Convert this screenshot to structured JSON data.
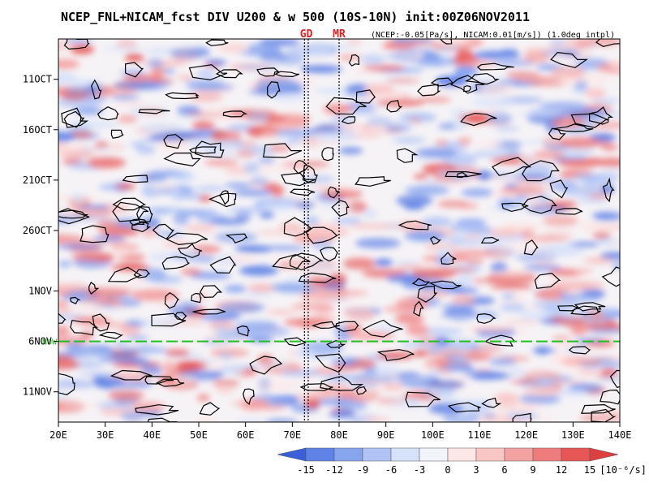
{
  "chart_data": {
    "type": "heatmap",
    "title": "NCEP_FNL+NICAM_fcst DIV U200 & w 500 (10S-10N) init:00Z06NOV2011",
    "subtitle": "(NCEP:-0.05[Pa/s], NICAM:0.01[m/s]) (1.0deg intpl)",
    "x_axis": {
      "range": [
        20,
        140
      ],
      "ticks": [
        {
          "value": 20,
          "label": "20E"
        },
        {
          "value": 30,
          "label": "30E"
        },
        {
          "value": 40,
          "label": "40E"
        },
        {
          "value": 50,
          "label": "50E"
        },
        {
          "value": 60,
          "label": "60E"
        },
        {
          "value": 70,
          "label": "70E"
        },
        {
          "value": 80,
          "label": "80E"
        },
        {
          "value": 90,
          "label": "90E"
        },
        {
          "value": 100,
          "label": "100E"
        },
        {
          "value": 110,
          "label": "110E"
        },
        {
          "value": 120,
          "label": "120E"
        },
        {
          "value": 130,
          "label": "130E"
        },
        {
          "value": 140,
          "label": "140E"
        }
      ]
    },
    "y_axis": {
      "start": "2011-10-07",
      "end": "2011-11-14",
      "ticks": [
        {
          "date": "2011-10-11",
          "label": "11OCT"
        },
        {
          "date": "2011-10-16",
          "label": "16OCT"
        },
        {
          "date": "2011-10-21",
          "label": "21OCT"
        },
        {
          "date": "2011-10-26",
          "label": "26OCT"
        },
        {
          "date": "2011-11-01",
          "label": "1NOV"
        },
        {
          "date": "2011-11-06",
          "label": "6NOV"
        },
        {
          "date": "2011-11-11",
          "label": "11NOV"
        }
      ]
    },
    "markers": [
      {
        "label": "GD",
        "lon": 73,
        "lines": [
          72.6,
          73.4
        ]
      },
      {
        "label": "MR",
        "lon": 80,
        "lines": [
          80
        ]
      }
    ],
    "now_line": {
      "date": "2011-11-06",
      "label": "NOW",
      "color": "#20c020"
    },
    "colorbar": {
      "unit": "[10⁻⁶/s]",
      "levels": [
        "-15",
        "-12",
        "-9",
        "-6",
        "-3",
        "0",
        "3",
        "6",
        "9",
        "12",
        "15"
      ],
      "colors": [
        "#3a5fd8",
        "#5f82e6",
        "#87a4ef",
        "#afc3f5",
        "#d6e1fa",
        "#f2f4fc",
        "#fde6e6",
        "#f9c6c6",
        "#f4a1a1",
        "#ee7c7c",
        "#e65656",
        "#de4040"
      ]
    }
  }
}
